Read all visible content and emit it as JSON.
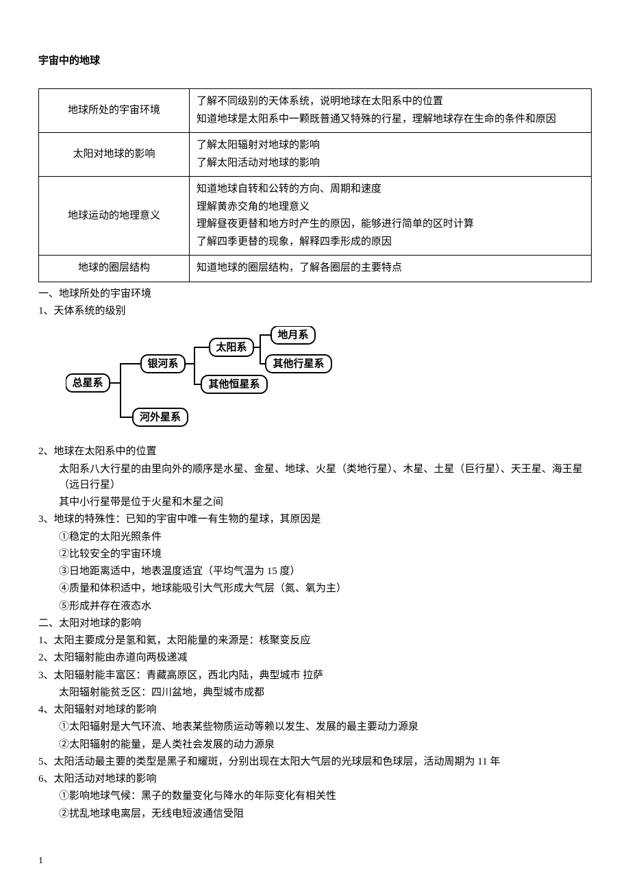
{
  "title": "宇宙中的地球",
  "outline": {
    "rows": [
      {
        "topic": "地球所处的宇宙环境",
        "detail": "了解不同级别的天体系统，说明地球在太阳系中的位置\n知道地球是太阳系中一颗既普通又特殊的行星，理解地球存在生命的条件和原因"
      },
      {
        "topic": "太阳对地球的影响",
        "detail": "了解太阳辐射对地球的影响\n了解太阳活动对地球的影响"
      },
      {
        "topic": "地球运动的地理意义",
        "detail": "知道地球自转和公转的方向、周期和速度\n理解黄赤交角的地理意义\n理解昼夜更替和地方时产生的原因，能够进行简单的区时计算\n了解四季更替的现象，解释四季形成的原因"
      },
      {
        "topic": "地球的圈层结构",
        "detail": "知道地球的圈层结构，了解各圈层的主要特点"
      }
    ]
  },
  "sec1": {
    "h": "一、地球所处的宇宙环境",
    "p1": "1、天体系统的级别",
    "diagram": {
      "nodes": {
        "zongxingxi": "总星系",
        "yinhexi": "银河系",
        "hewaixingxi": "河外星系",
        "taiyangxi": "太阳系",
        "qitahengxingxi": "其他恒星系",
        "diyuexi": "地月系",
        "qitaxingxingxi": "其他行星系"
      }
    },
    "p2": "2、地球在太阳系中的位置",
    "p2a": "太阳系八大行星的由里向外的顺序是水星、金星、地球、火星（类地行星）、木星、土星（巨行星）、天王星、海王星（远日行星）",
    "p2b": "其中小行星带是位于火星和木星之间",
    "p3": "3、地球的特殊性：已知的宇宙中唯一有生物的星球，其原因是",
    "p3a": "①稳定的太阳光照条件",
    "p3b": "②比较安全的宇宙环境",
    "p3c": "③日地距离适中，地表温度适宜（平均气温为 15 度）",
    "p3d": "④质量和体积适中，地球能吸引大气形成大气层（氮、氧为主）",
    "p3e": "⑤形成并存在液态水"
  },
  "sec2": {
    "h": "二、太阳对地球的影响",
    "p1": "1、太阳主要成分是氢和氦，太阳能量的来源是：核聚变反应",
    "p2": "2、太阳辐射能由赤道向两极递减",
    "p3": "3、太阳辐射能丰富区：青藏高原区，西北内陆，典型城市 拉萨",
    "p3a": "太阳辐射能贫乏区：四川盆地，典型城市成都",
    "p4": "4、太阳辐射对地球的影响",
    "p4a": "①太阳辐射是大气环流、地表某些物质运动等赖以发生、发展的最主要动力源泉",
    "p4b": "②太阳辐射的能量，是人类社会发展的动力源泉",
    "p5": "5、太阳活动最主要的类型是黑子和耀斑，分别出现在太阳大气层的光球层和色球层，活动周期为 11 年",
    "p6": "6、太阳活动对地球的影响",
    "p6a": "①影响地球气候：黑子的数量变化与降水的年际变化有相关性",
    "p6b": "②扰乱地球电离层，无线电短波通信受阻"
  },
  "pagenum": "1"
}
